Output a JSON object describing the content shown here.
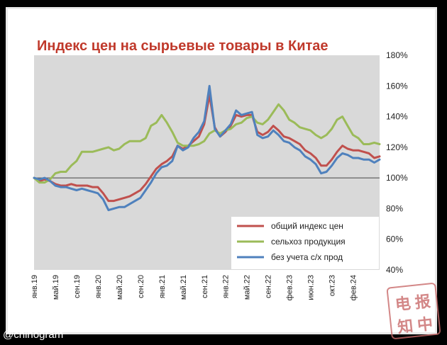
{
  "chart_data": {
    "type": "line",
    "title": "Индекс цен на сырьевые товары в Китае",
    "x_tick_labels": [
      "янв.19",
      "май.19",
      "сен.19",
      "янв.20",
      "май.20",
      "сен.20",
      "янв.21",
      "май.21",
      "сен.21",
      "янв.22",
      "май.22",
      "сен.22",
      "фев.23",
      "июн.23",
      "окт.23",
      "фев.24"
    ],
    "y_tick_labels": [
      "40%",
      "60%",
      "80%",
      "100%",
      "120%",
      "140%",
      "160%",
      "180%"
    ],
    "ylim": [
      40,
      180
    ],
    "y_unit": "%",
    "reference_line": 100,
    "legend_position": "bottom-right",
    "x_range": [
      "янв.19",
      "май.24"
    ],
    "series": [
      {
        "name": "общий индекс цен",
        "color": "#c0504d",
        "points": [
          [
            0,
            100
          ],
          [
            1,
            98
          ],
          [
            2,
            99
          ],
          [
            3,
            98
          ],
          [
            4,
            96
          ],
          [
            5,
            95
          ],
          [
            6,
            95
          ],
          [
            7,
            96
          ],
          [
            8,
            95
          ],
          [
            9,
            95
          ],
          [
            10,
            95
          ],
          [
            11,
            94
          ],
          [
            12,
            94
          ],
          [
            13,
            90
          ],
          [
            14,
            85
          ],
          [
            15,
            85
          ],
          [
            16,
            86
          ],
          [
            17,
            87
          ],
          [
            18,
            88
          ],
          [
            19,
            90
          ],
          [
            20,
            92
          ],
          [
            21,
            96
          ],
          [
            22,
            101
          ],
          [
            23,
            106
          ],
          [
            24,
            109
          ],
          [
            25,
            111
          ],
          [
            26,
            114
          ],
          [
            27,
            121
          ],
          [
            28,
            119
          ],
          [
            29,
            121
          ],
          [
            30,
            124
          ],
          [
            31,
            127
          ],
          [
            32,
            135
          ],
          [
            33,
            154
          ],
          [
            34,
            133
          ],
          [
            35,
            127
          ],
          [
            36,
            130
          ],
          [
            37,
            134
          ],
          [
            38,
            141
          ],
          [
            39,
            140
          ],
          [
            40,
            141
          ],
          [
            41,
            141
          ],
          [
            42,
            130
          ],
          [
            43,
            128
          ],
          [
            44,
            130
          ],
          [
            45,
            134
          ],
          [
            46,
            131
          ],
          [
            47,
            127
          ],
          [
            48,
            126
          ],
          [
            49,
            124
          ],
          [
            50,
            122
          ],
          [
            51,
            118
          ],
          [
            52,
            116
          ],
          [
            53,
            113
          ],
          [
            54,
            108
          ],
          [
            55,
            108
          ],
          [
            56,
            112
          ],
          [
            57,
            117
          ],
          [
            58,
            121
          ],
          [
            59,
            119
          ],
          [
            60,
            118
          ],
          [
            61,
            118
          ],
          [
            62,
            117
          ],
          [
            63,
            116
          ],
          [
            64,
            113
          ],
          [
            65,
            114
          ]
        ]
      },
      {
        "name": "сельхоз продукция",
        "color": "#9bbb59",
        "points": [
          [
            0,
            100
          ],
          [
            1,
            97
          ],
          [
            2,
            97
          ],
          [
            3,
            99
          ],
          [
            4,
            103
          ],
          [
            5,
            104
          ],
          [
            6,
            104
          ],
          [
            7,
            108
          ],
          [
            8,
            111
          ],
          [
            9,
            117
          ],
          [
            10,
            117
          ],
          [
            11,
            117
          ],
          [
            12,
            118
          ],
          [
            13,
            119
          ],
          [
            14,
            120
          ],
          [
            15,
            118
          ],
          [
            16,
            119
          ],
          [
            17,
            122
          ],
          [
            18,
            124
          ],
          [
            19,
            124
          ],
          [
            20,
            124
          ],
          [
            21,
            126
          ],
          [
            22,
            134
          ],
          [
            23,
            136
          ],
          [
            24,
            141
          ],
          [
            25,
            136
          ],
          [
            26,
            130
          ],
          [
            27,
            123
          ],
          [
            28,
            121
          ],
          [
            29,
            121
          ],
          [
            30,
            121
          ],
          [
            31,
            122
          ],
          [
            32,
            124
          ],
          [
            33,
            129
          ],
          [
            34,
            131
          ],
          [
            35,
            129
          ],
          [
            36,
            131
          ],
          [
            37,
            132
          ],
          [
            38,
            135
          ],
          [
            39,
            136
          ],
          [
            40,
            139
          ],
          [
            41,
            140
          ],
          [
            42,
            136
          ],
          [
            43,
            135
          ],
          [
            44,
            138
          ],
          [
            45,
            143
          ],
          [
            46,
            148
          ],
          [
            47,
            144
          ],
          [
            48,
            138
          ],
          [
            49,
            136
          ],
          [
            50,
            133
          ],
          [
            51,
            132
          ],
          [
            52,
            131
          ],
          [
            53,
            128
          ],
          [
            54,
            126
          ],
          [
            55,
            128
          ],
          [
            56,
            132
          ],
          [
            57,
            138
          ],
          [
            58,
            140
          ],
          [
            59,
            134
          ],
          [
            60,
            128
          ],
          [
            61,
            126
          ],
          [
            62,
            122
          ],
          [
            63,
            122
          ],
          [
            64,
            123
          ],
          [
            65,
            122
          ]
        ]
      },
      {
        "name": "без учета с/х прод",
        "color": "#4f81bd",
        "points": [
          [
            0,
            100
          ],
          [
            1,
            99
          ],
          [
            2,
            100
          ],
          [
            3,
            98
          ],
          [
            4,
            95
          ],
          [
            5,
            94
          ],
          [
            6,
            94
          ],
          [
            7,
            93
          ],
          [
            8,
            92
          ],
          [
            9,
            93
          ],
          [
            10,
            92
          ],
          [
            11,
            91
          ],
          [
            12,
            90
          ],
          [
            13,
            86
          ],
          [
            14,
            79
          ],
          [
            15,
            80
          ],
          [
            16,
            81
          ],
          [
            17,
            81
          ],
          [
            18,
            83
          ],
          [
            19,
            85
          ],
          [
            20,
            87
          ],
          [
            21,
            92
          ],
          [
            22,
            97
          ],
          [
            23,
            103
          ],
          [
            24,
            107
          ],
          [
            25,
            108
          ],
          [
            26,
            111
          ],
          [
            27,
            121
          ],
          [
            28,
            118
          ],
          [
            29,
            120
          ],
          [
            30,
            126
          ],
          [
            31,
            130
          ],
          [
            32,
            137
          ],
          [
            33,
            160
          ],
          [
            34,
            132
          ],
          [
            35,
            127
          ],
          [
            36,
            131
          ],
          [
            37,
            135
          ],
          [
            38,
            144
          ],
          [
            39,
            141
          ],
          [
            40,
            142
          ],
          [
            41,
            143
          ],
          [
            42,
            128
          ],
          [
            43,
            126
          ],
          [
            44,
            127
          ],
          [
            45,
            131
          ],
          [
            46,
            128
          ],
          [
            47,
            124
          ],
          [
            48,
            123
          ],
          [
            49,
            120
          ],
          [
            50,
            118
          ],
          [
            51,
            114
          ],
          [
            52,
            112
          ],
          [
            53,
            109
          ],
          [
            54,
            103
          ],
          [
            55,
            104
          ],
          [
            56,
            108
          ],
          [
            57,
            113
          ],
          [
            58,
            116
          ],
          [
            59,
            115
          ],
          [
            60,
            113
          ],
          [
            61,
            113
          ],
          [
            62,
            112
          ],
          [
            63,
            112
          ],
          [
            64,
            110
          ],
          [
            65,
            112
          ]
        ]
      }
    ]
  },
  "watermark": "@chinogram",
  "seal": {
    "chars": [
      "电",
      "报",
      "知",
      "中"
    ]
  }
}
